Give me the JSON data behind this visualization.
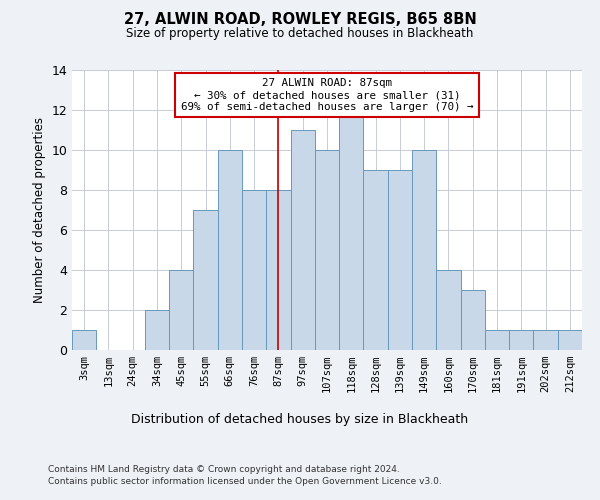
{
  "title1": "27, ALWIN ROAD, ROWLEY REGIS, B65 8BN",
  "title2": "Size of property relative to detached houses in Blackheath",
  "dist_label": "Distribution of detached houses by size in Blackheath",
  "ylabel": "Number of detached properties",
  "bin_labels": [
    "3sqm",
    "13sqm",
    "24sqm",
    "34sqm",
    "45sqm",
    "55sqm",
    "66sqm",
    "76sqm",
    "87sqm",
    "97sqm",
    "107sqm",
    "118sqm",
    "128sqm",
    "139sqm",
    "149sqm",
    "160sqm",
    "170sqm",
    "181sqm",
    "191sqm",
    "202sqm",
    "212sqm"
  ],
  "bar_heights": [
    1,
    0,
    0,
    2,
    4,
    7,
    10,
    8,
    8,
    11,
    10,
    12,
    9,
    9,
    10,
    4,
    3,
    1,
    1,
    1,
    1
  ],
  "bar_color": "#c8d8e8",
  "bar_edge_color": "#6699bb",
  "vline_x_idx": 8,
  "vline_color": "#cc0000",
  "annotation_line1": "27 ALWIN ROAD: 87sqm",
  "annotation_line2": "← 30% of detached houses are smaller (31)",
  "annotation_line3": "69% of semi-detached houses are larger (70) →",
  "annotation_box_color": "#ffffff",
  "annotation_box_edge": "#cc0000",
  "ylim": [
    0,
    14
  ],
  "yticks": [
    0,
    2,
    4,
    6,
    8,
    10,
    12,
    14
  ],
  "footnote1": "Contains HM Land Registry data © Crown copyright and database right 2024.",
  "footnote2": "Contains public sector information licensed under the Open Government Licence v3.0.",
  "bg_color": "#eef2f7",
  "plot_bg_color": "#ffffff",
  "grid_color": "#c8ccd8"
}
